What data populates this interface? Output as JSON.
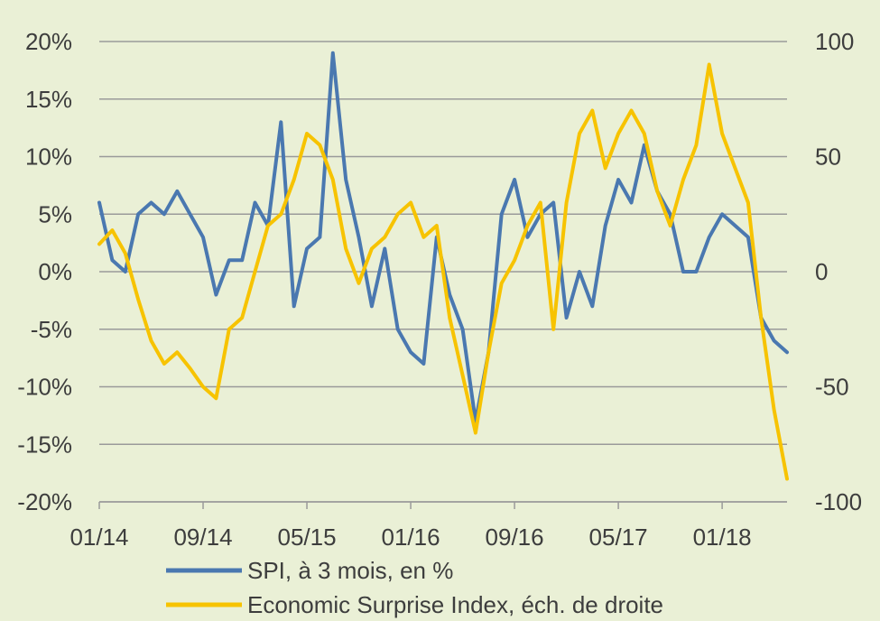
{
  "chart_data": {
    "type": "line",
    "background": "#eaf0d6",
    "grid": true,
    "grid_color": "#9a9a9a",
    "legend_position": "bottom-left",
    "x_ticks": [
      "01/14",
      "09/14",
      "05/15",
      "01/16",
      "09/16",
      "05/17",
      "01/18"
    ],
    "y_left": {
      "ticks": [
        "20%",
        "15%",
        "10%",
        "5%",
        "0%",
        "-5%",
        "-10%",
        "-15%",
        "-20%"
      ],
      "range": [
        -20,
        20
      ],
      "unit": "%"
    },
    "y_right": {
      "ticks": [
        "100",
        "50",
        "0",
        "-50",
        "-100"
      ],
      "range": [
        -100,
        100
      ]
    },
    "series": [
      {
        "name": "SPI, à 3 mois, en %",
        "axis": "left",
        "color": "#4a78b0",
        "points": [
          [
            "2014-01",
            6
          ],
          [
            "2014-02",
            1
          ],
          [
            "2014-03",
            0
          ],
          [
            "2014-04",
            5
          ],
          [
            "2014-05",
            6
          ],
          [
            "2014-06",
            5
          ],
          [
            "2014-07",
            7
          ],
          [
            "2014-08",
            5
          ],
          [
            "2014-09",
            3
          ],
          [
            "2014-10",
            -2
          ],
          [
            "2014-11",
            1
          ],
          [
            "2014-12",
            1
          ],
          [
            "2015-01",
            6
          ],
          [
            "2015-02",
            4
          ],
          [
            "2015-03",
            13
          ],
          [
            "2015-04",
            -3
          ],
          [
            "2015-05",
            2
          ],
          [
            "2015-06",
            3
          ],
          [
            "2015-07",
            19
          ],
          [
            "2015-08",
            8
          ],
          [
            "2015-09",
            3
          ],
          [
            "2015-10",
            -3
          ],
          [
            "2015-11",
            2
          ],
          [
            "2015-12",
            -5
          ],
          [
            "2016-01",
            -7
          ],
          [
            "2016-02",
            -8
          ],
          [
            "2016-03",
            3
          ],
          [
            "2016-04",
            -2
          ],
          [
            "2016-05",
            -5
          ],
          [
            "2016-06",
            -13
          ],
          [
            "2016-07",
            -7
          ],
          [
            "2016-08",
            5
          ],
          [
            "2016-09",
            8
          ],
          [
            "2016-10",
            3
          ],
          [
            "2016-11",
            5
          ],
          [
            "2016-12",
            6
          ],
          [
            "2017-01",
            -4
          ],
          [
            "2017-02",
            0
          ],
          [
            "2017-03",
            -3
          ],
          [
            "2017-04",
            4
          ],
          [
            "2017-05",
            8
          ],
          [
            "2017-06",
            6
          ],
          [
            "2017-07",
            11
          ],
          [
            "2017-08",
            7
          ],
          [
            "2017-09",
            5
          ],
          [
            "2017-10",
            0
          ],
          [
            "2017-11",
            0
          ],
          [
            "2017-12",
            3
          ],
          [
            "2018-01",
            5
          ],
          [
            "2018-02",
            4
          ],
          [
            "2018-03",
            3
          ],
          [
            "2018-04",
            -4
          ],
          [
            "2018-05",
            -6
          ],
          [
            "2018-06",
            -7
          ]
        ]
      },
      {
        "name": "Economic Surprise Index, éch. de droite",
        "axis": "right",
        "color": "#f7c300",
        "points": [
          [
            "2014-01",
            12
          ],
          [
            "2014-02",
            18
          ],
          [
            "2014-03",
            8
          ],
          [
            "2014-04",
            -12
          ],
          [
            "2014-05",
            -30
          ],
          [
            "2014-06",
            -40
          ],
          [
            "2014-07",
            -35
          ],
          [
            "2014-08",
            -42
          ],
          [
            "2014-09",
            -50
          ],
          [
            "2014-10",
            -55
          ],
          [
            "2014-11",
            -25
          ],
          [
            "2014-12",
            -20
          ],
          [
            "2015-01",
            0
          ],
          [
            "2015-02",
            20
          ],
          [
            "2015-03",
            25
          ],
          [
            "2015-04",
            40
          ],
          [
            "2015-05",
            60
          ],
          [
            "2015-06",
            55
          ],
          [
            "2015-07",
            40
          ],
          [
            "2015-08",
            10
          ],
          [
            "2015-09",
            -5
          ],
          [
            "2015-10",
            10
          ],
          [
            "2015-11",
            15
          ],
          [
            "2015-12",
            25
          ],
          [
            "2016-01",
            30
          ],
          [
            "2016-02",
            15
          ],
          [
            "2016-03",
            20
          ],
          [
            "2016-04",
            -20
          ],
          [
            "2016-05",
            -45
          ],
          [
            "2016-06",
            -70
          ],
          [
            "2016-07",
            -35
          ],
          [
            "2016-08",
            -5
          ],
          [
            "2016-09",
            5
          ],
          [
            "2016-10",
            20
          ],
          [
            "2016-11",
            30
          ],
          [
            "2016-12",
            -25
          ],
          [
            "2017-01",
            30
          ],
          [
            "2017-02",
            60
          ],
          [
            "2017-03",
            70
          ],
          [
            "2017-04",
            45
          ],
          [
            "2017-05",
            60
          ],
          [
            "2017-06",
            70
          ],
          [
            "2017-07",
            60
          ],
          [
            "2017-08",
            35
          ],
          [
            "2017-09",
            20
          ],
          [
            "2017-10",
            40
          ],
          [
            "2017-11",
            55
          ],
          [
            "2017-12",
            90
          ],
          [
            "2018-01",
            60
          ],
          [
            "2018-02",
            45
          ],
          [
            "2018-03",
            30
          ],
          [
            "2018-04",
            -20
          ],
          [
            "2018-05",
            -60
          ],
          [
            "2018-06",
            -90
          ]
        ]
      }
    ]
  }
}
